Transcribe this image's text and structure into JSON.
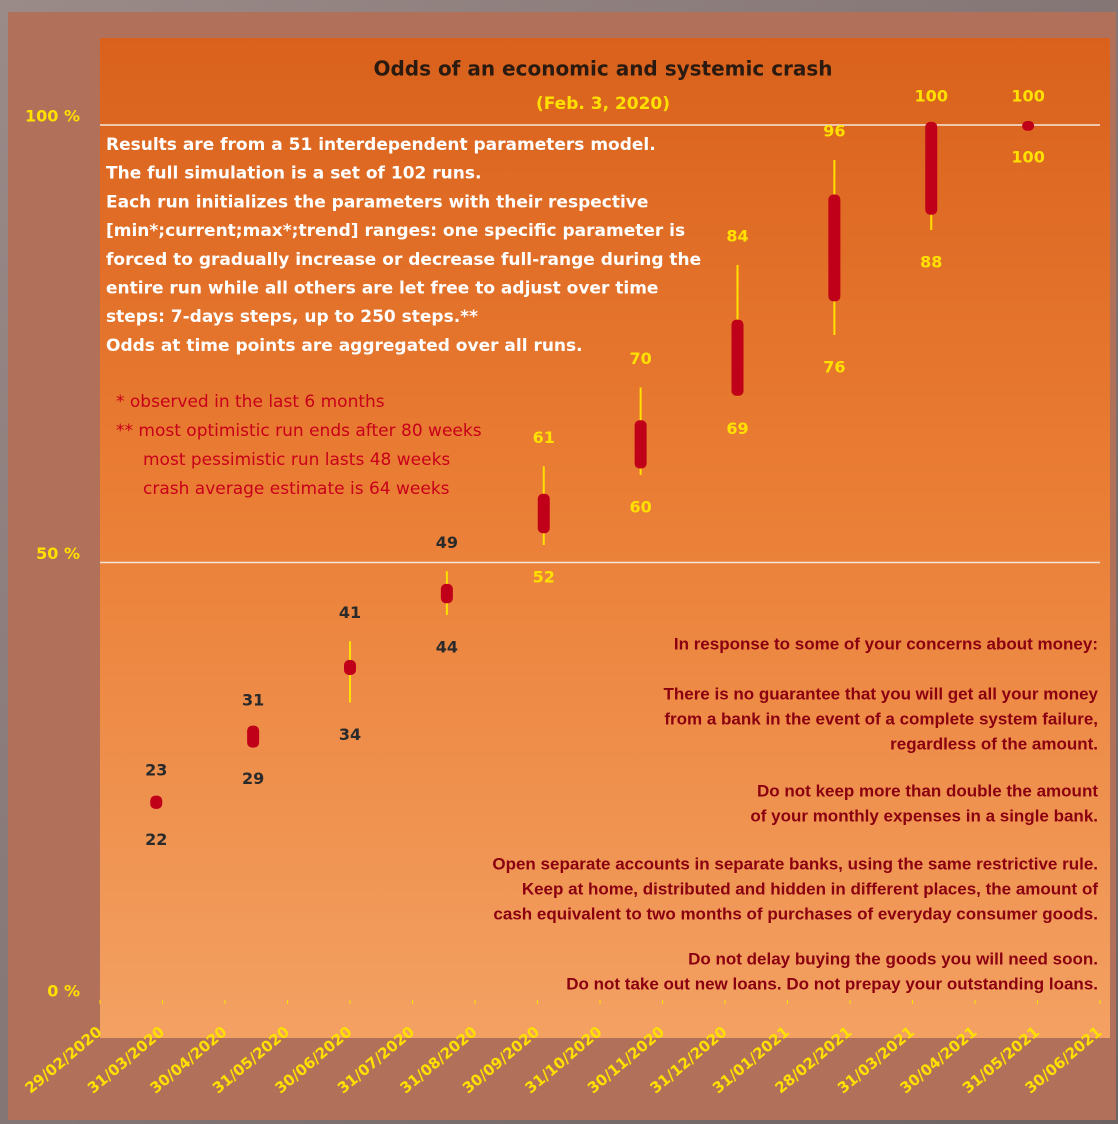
{
  "chart_data": {
    "type": "candlestick",
    "title": "Odds of an economic and systemic crash",
    "subtitle": "(Feb. 3, 2020)",
    "notes": [
      "Results are from a 51 interdependent parameters model.",
      "The full simulation is a set of 102 runs.",
      "Each run initializes the parameters with their respective",
      "[min*;current;max*;trend] ranges: one specific parameter is",
      "forced to gradually increase or decrease full-range during the",
      "entire run while all others are let free to adjust over time",
      "steps: 7-days steps, up to 250 steps.**",
      "Odds at time points are aggregated over all runs."
    ],
    "footnotes": [
      "* observed in the last 6 months",
      "** most optimistic run ends after 80 weeks",
      "most pessimistic run lasts 48 weeks",
      "crash average estimate is 64 weeks"
    ],
    "advice": [
      "In response to some of your concerns about money:",
      "There is no guarantee that you will get all your money",
      "from a bank in the event of a complete system failure,",
      "regardless of the amount.",
      "Do not keep more than double the amount",
      "of your monthly expenses in a single bank.",
      "Open separate accounts in separate banks, using the same restrictive rule.",
      "Keep at home, distributed and hidden in different places, the amount of",
      "cash equivalent to two months of purchases of everyday consumer goods.",
      "Do not delay buying the goods you will need soon.",
      "Do not take out new loans. Do not prepay your outstanding loans."
    ],
    "xlim": [
      0,
      16
    ],
    "xticks": [
      {
        "value": 0,
        "label": "29/02/2020"
      },
      {
        "value": 1,
        "label": "31/03/2020"
      },
      {
        "value": 2,
        "label": "30/04/2020"
      },
      {
        "value": 3,
        "label": "31/05/2020"
      },
      {
        "value": 4,
        "label": "30/06/2020"
      },
      {
        "value": 5,
        "label": "31/07/2020"
      },
      {
        "value": 6,
        "label": "31/08/2020"
      },
      {
        "value": 7,
        "label": "30/09/2020"
      },
      {
        "value": 8,
        "label": "31/10/2020"
      },
      {
        "value": 9,
        "label": "30/11/2020"
      },
      {
        "value": 10,
        "label": "31/12/2020"
      },
      {
        "value": 11,
        "label": "31/01/2021"
      },
      {
        "value": 12,
        "label": "28/02/2021"
      },
      {
        "value": 13,
        "label": "31/03/2021"
      },
      {
        "value": 14,
        "label": "30/04/2021"
      },
      {
        "value": 15,
        "label": "31/05/2021"
      },
      {
        "value": 16,
        "label": "30/06/2021"
      }
    ],
    "ylim": [
      0,
      100
    ],
    "yticks": [
      {
        "value": 0,
        "label": "0 %"
      },
      {
        "value": 50,
        "label": "50 %"
      },
      {
        "value": 100,
        "label": "100 %"
      }
    ],
    "grid": true,
    "x": [
      0.9,
      2.45,
      4.0,
      5.55,
      7.1,
      8.65,
      10.2,
      11.75,
      13.3,
      14.85
    ],
    "low": [
      22,
      29,
      34,
      44,
      52,
      60,
      69,
      76,
      88,
      100
    ],
    "high": [
      23,
      31,
      41,
      49,
      61,
      70,
      84,
      96,
      100,
      100
    ],
    "open": [
      22.3,
      29.3,
      37.6,
      45.8,
      53.8,
      61.2,
      69.5,
      80.3,
      90.2,
      99.8
    ],
    "close": [
      22.9,
      30.9,
      38.4,
      47.1,
      57.4,
      65.8,
      77.3,
      91.6,
      99.9,
      100
    ],
    "whisker_color": "#ffe000",
    "body_color": "#c00018"
  }
}
